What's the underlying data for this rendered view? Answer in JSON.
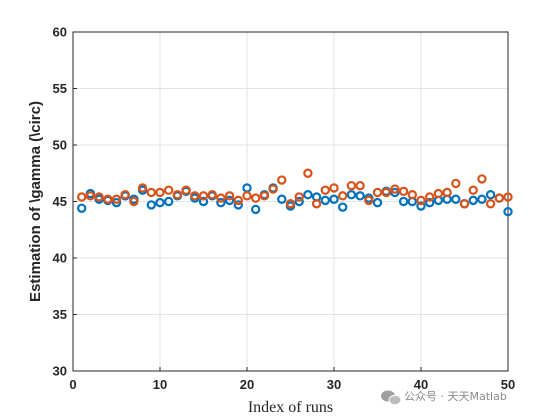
{
  "chart_data": {
    "type": "scatter",
    "title": "",
    "xlabel": "Index of runs",
    "ylabel": "Estimation of \\gamma (\\circ)",
    "xlim": [
      0,
      50
    ],
    "ylim": [
      30,
      60
    ],
    "xticks": [
      0,
      10,
      20,
      30,
      40,
      50
    ],
    "yticks": [
      30,
      35,
      40,
      45,
      50,
      55,
      60
    ],
    "grid": true,
    "legend": "none",
    "marker": "circle-open",
    "series": [
      {
        "color": "#0072BD",
        "x": [
          1,
          2,
          3,
          4,
          5,
          6,
          7,
          8,
          9,
          10,
          11,
          12,
          13,
          14,
          15,
          16,
          17,
          18,
          19,
          20,
          21,
          22,
          23,
          24,
          25,
          26,
          27,
          28,
          29,
          30,
          31,
          32,
          33,
          34,
          35,
          36,
          37,
          38,
          39,
          40,
          41,
          42,
          43,
          44,
          45,
          46,
          47,
          48,
          49,
          50
        ],
        "y": [
          44.4,
          45.7,
          45.2,
          45.1,
          44.9,
          45.5,
          45.2,
          46.0,
          44.7,
          44.9,
          45.0,
          45.5,
          45.9,
          45.3,
          45.0,
          45.5,
          44.9,
          45.1,
          44.7,
          46.2,
          44.3,
          45.6,
          46.2,
          45.2,
          44.6,
          45.0,
          45.6,
          45.4,
          45.1,
          45.2,
          44.5,
          45.6,
          45.5,
          45.3,
          44.9,
          45.9,
          45.8,
          45.0,
          45.0,
          44.6,
          44.9,
          45.1,
          45.2,
          45.2,
          44.8,
          45.1,
          45.2,
          45.6,
          45.3,
          44.1
        ]
      },
      {
        "color": "#D95319",
        "x": [
          1,
          2,
          3,
          4,
          5,
          6,
          7,
          8,
          9,
          10,
          11,
          12,
          13,
          14,
          15,
          16,
          17,
          18,
          19,
          20,
          21,
          22,
          23,
          24,
          25,
          26,
          27,
          28,
          29,
          30,
          31,
          32,
          33,
          34,
          35,
          36,
          37,
          38,
          39,
          40,
          41,
          42,
          43,
          44,
          45,
          46,
          47,
          48,
          49,
          50
        ],
        "y": [
          45.4,
          45.5,
          45.4,
          45.2,
          45.2,
          45.6,
          45.0,
          46.2,
          45.8,
          45.8,
          46.0,
          45.6,
          46.0,
          45.5,
          45.5,
          45.6,
          45.3,
          45.5,
          45.1,
          45.5,
          45.3,
          45.5,
          46.1,
          46.9,
          44.8,
          45.4,
          47.5,
          44.8,
          46.0,
          46.2,
          45.5,
          46.4,
          46.4,
          45.1,
          45.8,
          45.8,
          46.1,
          45.9,
          45.6,
          45.1,
          45.4,
          45.7,
          45.8,
          46.6,
          44.8,
          46.0,
          47.0,
          44.8,
          45.3,
          45.4
        ]
      }
    ]
  },
  "watermark": "公众号 · 天天Matlab"
}
